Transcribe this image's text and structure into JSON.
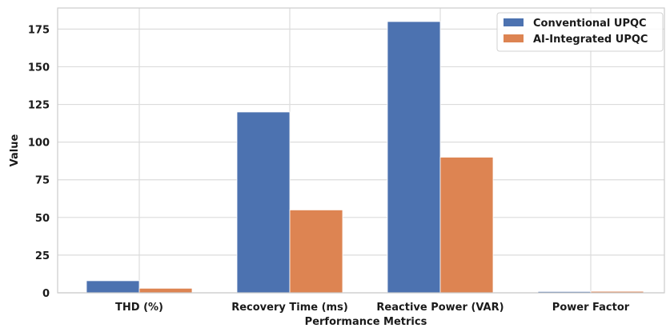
{
  "chart_data": {
    "type": "bar",
    "title": "",
    "xlabel": "Performance Metrics",
    "ylabel": "Value",
    "categories": [
      "THD (%)",
      "Recovery Time (ms)",
      "Reactive Power (VAR)",
      "Power Factor"
    ],
    "series": [
      {
        "name": "Conventional UPQC",
        "values": [
          8,
          120,
          180,
          0.85
        ],
        "color": "#4c72b0"
      },
      {
        "name": "AI-Integrated UPQC",
        "values": [
          3,
          55,
          90,
          0.98
        ],
        "color": "#dd8452"
      }
    ],
    "ylim": [
      0,
      189
    ],
    "yticks": [
      0,
      25,
      50,
      75,
      100,
      125,
      150,
      175
    ],
    "grid": true,
    "legend_position": "top-right"
  }
}
